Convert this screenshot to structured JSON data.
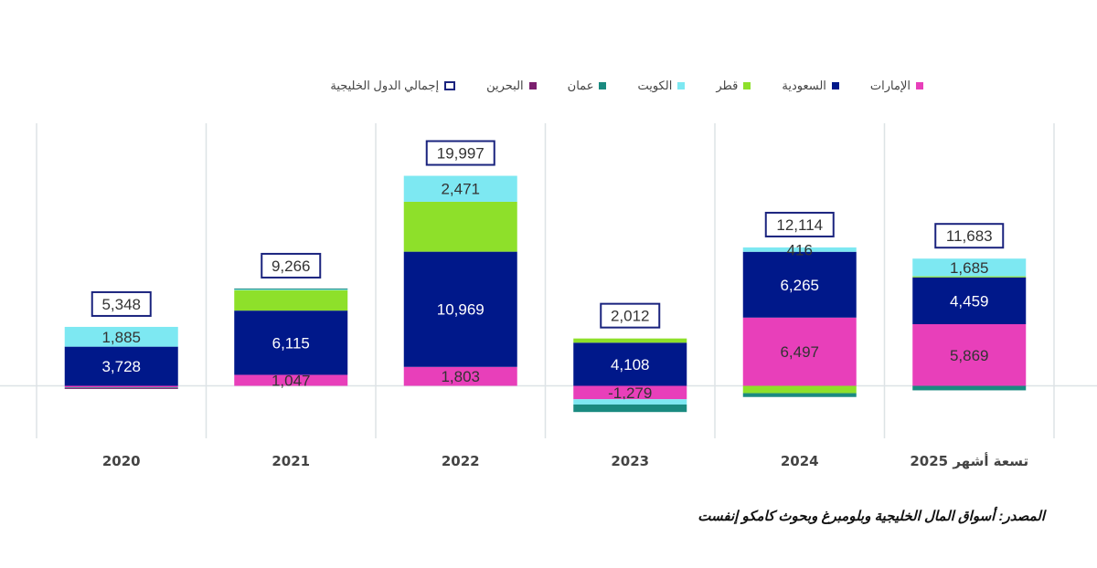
{
  "legend": [
    {
      "name": "إجمالي الدول الخليجية",
      "color": "#1a237e",
      "kind": "box"
    },
    {
      "name": "البحرين",
      "color": "#7b1f6e"
    },
    {
      "name": "عمان",
      "color": "#1a8a80"
    },
    {
      "name": "الكويت",
      "color": "#7de8f2"
    },
    {
      "name": "قطر",
      "color": "#8ee02a"
    },
    {
      "name": "السعودية",
      "color": "#00188a"
    },
    {
      "name": "الإمارات",
      "color": "#e83fba"
    }
  ],
  "source": "المصدر: أسواق المال الخليجية وبلومبرغ وبحوث كامكو إنفست",
  "chart_data": {
    "type": "bar",
    "stacked": true,
    "categories": [
      "2020",
      "2021",
      "2022",
      "2023",
      "2024",
      "تسعة أشهر 2025"
    ],
    "ylim": [
      -5000,
      25000
    ],
    "grid": "vertical separators",
    "legend_position": "top",
    "series": [
      {
        "name": "الإمارات",
        "color": "#e83fba",
        "values": [
          -150,
          1047,
          1803,
          -1279,
          6497,
          5869
        ],
        "labels": [
          null,
          "1,047",
          "1,803",
          "-1,279",
          "6,497",
          "5,869"
        ],
        "label_color": "#333"
      },
      {
        "name": "السعودية",
        "color": "#00188a",
        "values": [
          3728,
          6115,
          10969,
          4108,
          6265,
          4459
        ],
        "labels": [
          "3,728",
          "6,115",
          "10,969",
          "4,108",
          "6,265",
          "4,459"
        ],
        "label_color": "#fff"
      },
      {
        "name": "قطر",
        "color": "#8ee02a",
        "values": [
          0,
          1950,
          4754,
          400,
          -700,
          100
        ],
        "labels": [
          null,
          null,
          null,
          null,
          null,
          null
        ],
        "label_color": "#333"
      },
      {
        "name": "الكويت",
        "color": "#7de8f2",
        "values": [
          1885,
          120,
          2471,
          -500,
          416,
          1685
        ],
        "labels": [
          "1,885",
          null,
          "2,471",
          null,
          "416",
          "1,685"
        ],
        "label_color": "#333"
      },
      {
        "name": "عمان",
        "color": "#1a8a80",
        "values": [
          -60,
          34,
          0,
          -717,
          -364,
          -430
        ],
        "labels": [
          null,
          null,
          null,
          null,
          null,
          null
        ],
        "label_color": "#333"
      },
      {
        "name": "البحرين",
        "color": "#7b1f6e",
        "values": [
          -55,
          0,
          0,
          0,
          0,
          0
        ],
        "labels": [
          null,
          null,
          null,
          null,
          null,
          null
        ],
        "label_color": "#333"
      }
    ],
    "totals": {
      "name": "إجمالي الدول الخليجية",
      "values": [
        5348,
        9266,
        19997,
        2012,
        12114,
        11683
      ],
      "labels": [
        "5,348",
        "9,266",
        "19,997",
        "2,012",
        "12,114",
        "11,683"
      ]
    }
  }
}
